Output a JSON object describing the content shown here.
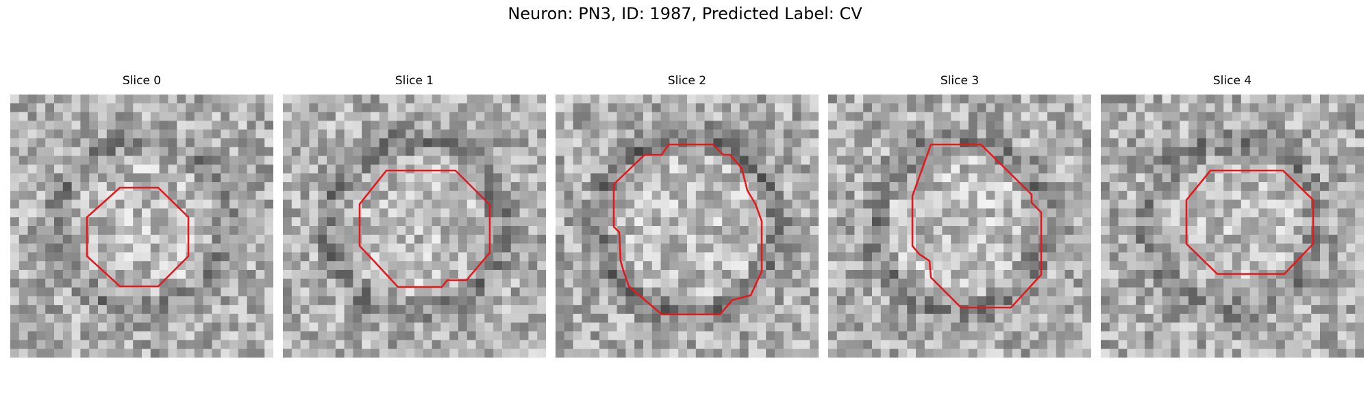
{
  "title": "Neuron: PN3, ID: 1987, Predicted Label: CV",
  "panels": [
    {
      "label": "Slice 0",
      "seed": 11,
      "ring": 0.55,
      "contour": "octagon-small"
    },
    {
      "label": "Slice 1",
      "seed": 23,
      "ring": 0.65,
      "contour": "octagon-medium"
    },
    {
      "label": "Slice 2",
      "seed": 37,
      "ring": 0.75,
      "contour": "irregular-large"
    },
    {
      "label": "Slice 3",
      "seed": 53,
      "ring": 0.6,
      "contour": "irregular-tall"
    },
    {
      "label": "Slice 4",
      "seed": 71,
      "ring": 0.6,
      "contour": "octagon-wide"
    }
  ],
  "colors": {
    "contour": "#e31a1c",
    "background": "#ffffff"
  },
  "colormap": "grayscale"
}
